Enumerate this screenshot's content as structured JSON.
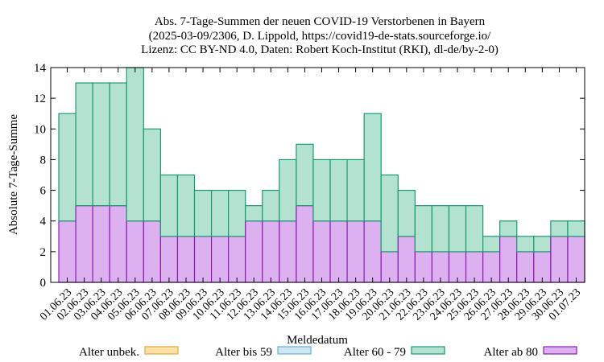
{
  "chart_data": {
    "type": "bar",
    "stacked": true,
    "title_lines": [
      "Abs. 7-Tage-Summen der neuen COVID-19 Verstorbenen in Bayern",
      "(2025-03-09/2306, D. Lippold, https://covid19-de-stats.sourceforge.io/",
      "Lizenz: CC BY-ND 4.0, Daten: Robert Koch-Institut (RKI), dl-de/by-2-0)"
    ],
    "xlabel": "Meldedatum",
    "ylabel": "Absolute 7-Tage-Summe",
    "ylim": [
      0,
      14
    ],
    "yticks": [
      0,
      2,
      4,
      6,
      8,
      10,
      12,
      14
    ],
    "grid": false,
    "legend_position": "bottom",
    "categories": [
      "01.06.23",
      "02.06.23",
      "03.06.23",
      "04.06.23",
      "05.06.23",
      "06.06.23",
      "07.06.23",
      "08.06.23",
      "09.06.23",
      "10.06.23",
      "11.06.23",
      "12.06.23",
      "13.06.23",
      "14.06.23",
      "15.06.23",
      "16.06.23",
      "17.06.23",
      "18.06.23",
      "19.06.23",
      "20.06.23",
      "21.06.23",
      "22.06.23",
      "23.06.23",
      "24.06.23",
      "25.06.23",
      "26.06.23",
      "27.06.23",
      "28.06.23",
      "29.06.23",
      "30.06.23",
      "01.07.23"
    ],
    "series": [
      {
        "name": "Alter unbek.",
        "fill": "#fbe3a8",
        "stroke": "#e8a33b",
        "values": [
          0,
          0,
          0,
          0,
          0,
          0,
          0,
          0,
          0,
          0,
          0,
          0,
          0,
          0,
          0,
          0,
          0,
          0,
          0,
          0,
          0,
          0,
          0,
          0,
          0,
          0,
          0,
          0,
          0,
          0,
          0
        ]
      },
      {
        "name": "Alter bis 59",
        "fill": "#cde7f5",
        "stroke": "#6aaed6",
        "values": [
          0,
          0,
          0,
          0,
          0,
          0,
          0,
          0,
          0,
          0,
          0,
          0,
          0,
          0,
          0,
          0,
          0,
          0,
          0,
          0,
          0,
          0,
          0,
          0,
          0,
          0,
          0,
          0,
          0,
          0,
          0
        ]
      },
      {
        "name": "Alter 60 - 79",
        "fill": "#b3e2d1",
        "stroke": "#1a9a6e",
        "values": [
          7,
          8,
          8,
          8,
          10,
          6,
          4,
          4,
          3,
          3,
          3,
          1,
          2,
          4,
          4,
          4,
          4,
          4,
          7,
          5,
          3,
          3,
          3,
          3,
          3,
          1,
          1,
          1,
          1,
          1,
          1
        ]
      },
      {
        "name": "Alter ab 80",
        "fill": "#ddb0f0",
        "stroke": "#8a1fb2",
        "values": [
          4,
          5,
          5,
          5,
          4,
          4,
          3,
          3,
          3,
          3,
          3,
          4,
          4,
          4,
          5,
          4,
          4,
          4,
          4,
          2,
          3,
          2,
          2,
          2,
          2,
          2,
          3,
          2,
          2,
          3,
          3
        ]
      }
    ]
  }
}
